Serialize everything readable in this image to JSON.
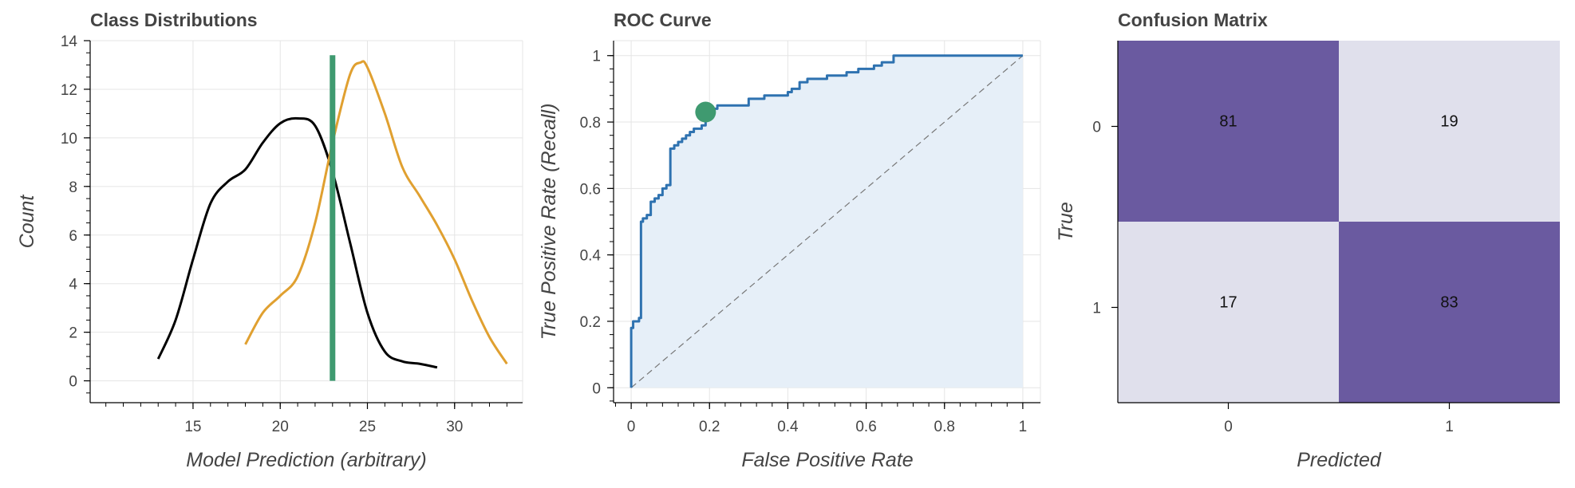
{
  "chart_data": [
    {
      "type": "line",
      "title": "Class Distributions",
      "xlabel": "Model Prediction (arbitrary)",
      "ylabel": "Count",
      "xlim": [
        9.1,
        33.9
      ],
      "ylim": [
        -0.9,
        14
      ],
      "xticks": [
        "15",
        "20",
        "25",
        "30"
      ],
      "yticks": [
        "0",
        "2",
        "4",
        "6",
        "8",
        "10",
        "12",
        "14"
      ],
      "grid": true,
      "colors": {
        "class0": "#000000",
        "class1": "#e0a030",
        "threshold": "#3f9a70"
      },
      "series": [
        {
          "x": [
            13,
            14,
            15,
            16,
            17,
            18,
            19,
            20,
            21,
            22,
            23,
            24,
            25,
            26,
            27,
            28,
            29
          ],
          "values": [
            0.9,
            2.5,
            5.0,
            7.3,
            8.2,
            8.7,
            9.8,
            10.6,
            10.8,
            10.5,
            8.6,
            5.7,
            2.8,
            1.2,
            0.8,
            0.7,
            0.55
          ]
        },
        {
          "x": [
            18,
            19,
            20,
            21,
            22,
            23,
            24,
            24.6,
            25,
            26,
            27,
            28,
            29,
            30,
            31,
            32,
            33
          ],
          "values": [
            1.5,
            2.8,
            3.5,
            4.3,
            6.5,
            9.8,
            12.6,
            13.1,
            12.9,
            11.0,
            8.8,
            7.6,
            6.4,
            5.0,
            3.3,
            1.8,
            0.7
          ]
        }
      ],
      "threshold": {
        "x": 23,
        "y": [
          0,
          13.4
        ]
      }
    },
    {
      "type": "line",
      "title": "ROC Curve",
      "xlabel": "False Positive Rate",
      "ylabel": "True Positive Rate (Recall)",
      "xlim": [
        -0.045,
        1.045
      ],
      "ylim": [
        -0.045,
        1.045
      ],
      "xticks": [
        "0",
        "0.2",
        "0.4",
        "0.6",
        "0.8",
        "1"
      ],
      "yticks": [
        "0",
        "0.2",
        "0.4",
        "0.6",
        "0.8",
        "1"
      ],
      "grid": true,
      "colors": {
        "curve": "#2e72b0",
        "fill": "#e6eff8",
        "marker": "#3f9a70",
        "diagonal": "#777777"
      },
      "roc": {
        "x": [
          0,
          0,
          0.005,
          0.005,
          0.02,
          0.02,
          0.025,
          0.025,
          0.03,
          0.03,
          0.04,
          0.04,
          0.05,
          0.05,
          0.06,
          0.06,
          0.07,
          0.07,
          0.08,
          0.08,
          0.09,
          0.09,
          0.1,
          0.1,
          0.11,
          0.11,
          0.12,
          0.12,
          0.13,
          0.13,
          0.14,
          0.14,
          0.15,
          0.15,
          0.16,
          0.16,
          0.18,
          0.18,
          0.19,
          0.19,
          0.22,
          0.22,
          0.3,
          0.3,
          0.32,
          0.32,
          0.34,
          0.34,
          0.4,
          0.4,
          0.41,
          0.41,
          0.42,
          0.42,
          0.43,
          0.43,
          0.45,
          0.45,
          0.47,
          0.47,
          0.5,
          0.5,
          0.55,
          0.55,
          0.58,
          0.58,
          0.62,
          0.62,
          0.64,
          0.64,
          0.67,
          0.67,
          1.0
        ],
        "y": [
          0,
          0.18,
          0.18,
          0.2,
          0.2,
          0.21,
          0.21,
          0.5,
          0.5,
          0.51,
          0.51,
          0.52,
          0.52,
          0.56,
          0.56,
          0.57,
          0.57,
          0.58,
          0.58,
          0.6,
          0.6,
          0.61,
          0.61,
          0.72,
          0.72,
          0.73,
          0.73,
          0.74,
          0.74,
          0.75,
          0.75,
          0.76,
          0.76,
          0.77,
          0.77,
          0.78,
          0.78,
          0.79,
          0.79,
          0.84,
          0.84,
          0.85,
          0.85,
          0.87,
          0.87,
          0.87,
          0.87,
          0.88,
          0.88,
          0.89,
          0.89,
          0.9,
          0.9,
          0.9,
          0.9,
          0.92,
          0.92,
          0.93,
          0.93,
          0.93,
          0.93,
          0.94,
          0.94,
          0.95,
          0.95,
          0.96,
          0.96,
          0.97,
          0.97,
          0.98,
          0.98,
          1.0,
          1.0
        ]
      },
      "operating_point": {
        "x": 0.19,
        "y": 0.83
      }
    },
    {
      "type": "heatmap",
      "title": "Confusion Matrix",
      "xlabel": "Predicted",
      "ylabel": "True",
      "x_categories": [
        "0",
        "1"
      ],
      "y_categories": [
        "0",
        "1"
      ],
      "values": [
        [
          81,
          19
        ],
        [
          17,
          83
        ]
      ],
      "colors": {
        "high": "#6a5aa0",
        "low": "#e0e0ec"
      }
    }
  ]
}
